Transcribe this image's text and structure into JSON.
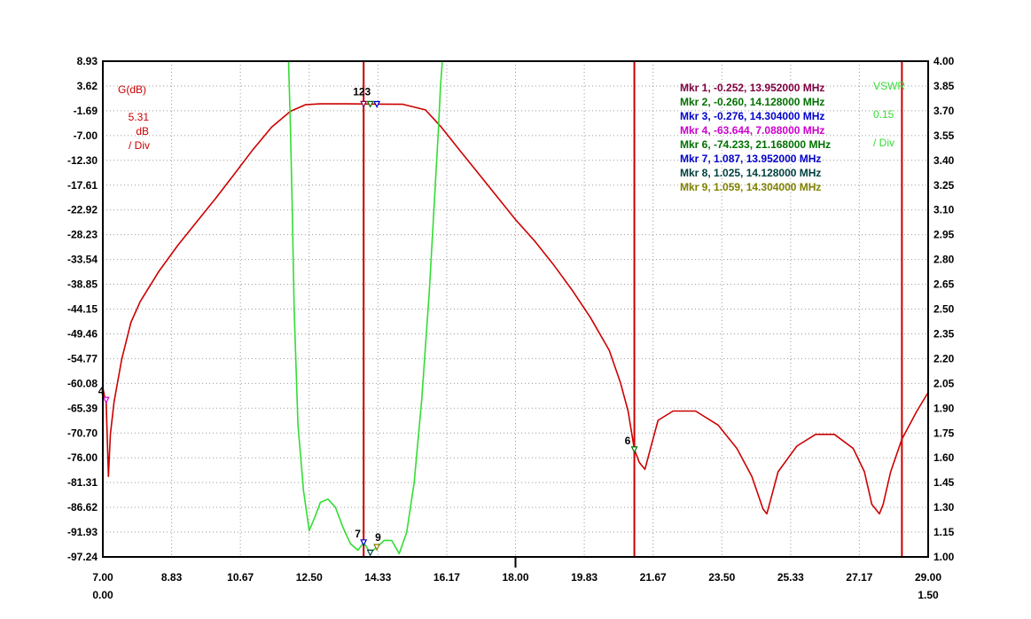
{
  "chart_data": {
    "type": "line",
    "x_range": [
      7.0,
      29.0
    ],
    "x_ticks": [
      "7.00",
      "8.83",
      "10.67",
      "12.50",
      "14.33",
      "16.17",
      "18.00",
      "19.83",
      "21.67",
      "23.50",
      "25.33",
      "27.17",
      "29.00"
    ],
    "x_sub_left": "0.00",
    "x_sub_right": "1.50",
    "y_left": {
      "label": "G(dB)",
      "scale_value": "5.31",
      "scale_unit": "dB",
      "scale_per": "/ Div",
      "range": [
        -97.24,
        8.93
      ],
      "ticks": [
        "8.93",
        "3.62",
        "-1.69",
        "-7.00",
        "-12.30",
        "-17.61",
        "-22.92",
        "-28.23",
        "-33.54",
        "-38.85",
        "-44.15",
        "-49.46",
        "-54.77",
        "-60.08",
        "-65.39",
        "-70.70",
        "-76.00",
        "-81.31",
        "-86.62",
        "-91.93",
        "-97.24"
      ]
    },
    "y_right": {
      "label": "VSWR",
      "scale_value": "0.15",
      "scale_per": "/ Div",
      "range": [
        1.0,
        4.0
      ],
      "ticks": [
        "4.00",
        "3.85",
        "3.70",
        "3.55",
        "3.40",
        "3.25",
        "3.10",
        "2.95",
        "2.80",
        "2.65",
        "2.50",
        "2.35",
        "2.20",
        "2.05",
        "1.90",
        "1.75",
        "1.60",
        "1.45",
        "1.30",
        "1.15",
        "1.00"
      ]
    },
    "grid": true,
    "markers": [
      {
        "text": "Mkr 1, -0.252, 13.952000 MHz",
        "color": "#800040"
      },
      {
        "text": "Mkr 2, -0.260, 14.128000 MHz",
        "color": "#007000"
      },
      {
        "text": "Mkr 3, -0.276, 14.304000 MHz",
        "color": "#0000cc"
      },
      {
        "text": "Mkr 4, -63.644, 7.088000 MHz",
        "color": "#cc00cc"
      },
      {
        "text": "Mkr 6, -74.233, 21.168000 MHz",
        "color": "#007000"
      },
      {
        "text": "Mkr 7, 1.087, 13.952000 MHz",
        "color": "#0000cc"
      },
      {
        "text": "Mkr 8, 1.025, 14.128000 MHz",
        "color": "#004040"
      },
      {
        "text": "Mkr 9, 1.059, 14.304000 MHz",
        "color": "#808000"
      }
    ],
    "marker_tags": [
      {
        "text": "123",
        "x": 13.952,
        "y": -0.252,
        "axis": "gain",
        "dx": -12,
        "dy": -10
      },
      {
        "text": "4",
        "x": 7.088,
        "y": -63.644,
        "axis": "gain",
        "dx": -9,
        "dy": -6
      },
      {
        "text": "6",
        "x": 21.168,
        "y": -74.233,
        "axis": "gain",
        "dx": -11,
        "dy": -6
      },
      {
        "text": "7",
        "x": 13.952,
        "y": 1.087,
        "axis": "vswr",
        "dx": -10,
        "dy": -6
      },
      {
        "text": "9",
        "x": 14.304,
        "y": 1.059,
        "axis": "vswr",
        "dx": -2,
        "dy": -7
      }
    ],
    "marker_points": [
      {
        "x": 13.952,
        "y": -0.252,
        "axis": "gain",
        "color": "#800040"
      },
      {
        "x": 14.128,
        "y": -0.26,
        "axis": "gain",
        "color": "#007000"
      },
      {
        "x": 14.304,
        "y": -0.276,
        "axis": "gain",
        "color": "#0000cc"
      },
      {
        "x": 7.088,
        "y": -63.644,
        "axis": "gain",
        "color": "#cc00cc"
      },
      {
        "x": 21.168,
        "y": -74.233,
        "axis": "gain",
        "color": "#007000"
      },
      {
        "x": 13.952,
        "y": 1.087,
        "axis": "vswr",
        "color": "#0000cc"
      },
      {
        "x": 14.128,
        "y": 1.025,
        "axis": "vswr",
        "color": "#004040"
      },
      {
        "x": 14.304,
        "y": 1.059,
        "axis": "vswr",
        "color": "#808000"
      }
    ],
    "vlines": [
      13.952,
      21.168,
      28.3
    ],
    "series": [
      {
        "axis": "gain",
        "color": "#cc0000",
        "x": [
          7.0,
          7.05,
          7.088,
          7.15,
          7.2,
          7.3,
          7.5,
          7.75,
          8.0,
          8.5,
          9.0,
          9.5,
          10.0,
          10.5,
          11.0,
          11.5,
          12.0,
          12.4,
          12.8,
          13.5,
          14.33,
          15.0,
          15.6,
          16.0,
          16.5,
          17.0,
          17.5,
          18.0,
          18.5,
          19.0,
          19.5,
          20.0,
          20.5,
          20.8,
          21.0,
          21.168,
          21.3,
          21.45,
          21.6,
          21.8,
          22.2,
          22.8,
          23.4,
          23.9,
          24.3,
          24.6,
          24.7,
          24.8,
          25.0,
          25.5,
          26.0,
          26.5,
          27.0,
          27.3,
          27.5,
          27.7,
          27.8,
          28.0,
          28.3,
          28.7,
          29.0
        ],
        "y": [
          -61.0,
          -63.0,
          -63.644,
          -80.0,
          -71.0,
          -64.0,
          -55.0,
          -47.0,
          -42.5,
          -36.0,
          -30.5,
          -25.5,
          -20.5,
          -15.3,
          -10.0,
          -5.2,
          -1.8,
          -0.4,
          -0.2,
          -0.2,
          -0.26,
          -0.3,
          -1.5,
          -5.0,
          -10.0,
          -15.0,
          -20.0,
          -25.0,
          -29.5,
          -34.5,
          -40.0,
          -46.0,
          -53.0,
          -60.0,
          -66.0,
          -74.233,
          -77.0,
          -78.5,
          -74.0,
          -68.0,
          -66.0,
          -66.0,
          -69.0,
          -74.0,
          -80.0,
          -87.0,
          -88.0,
          -85.0,
          -79.0,
          -73.5,
          -71.0,
          -71.0,
          -74.0,
          -79.0,
          -86.0,
          -88.0,
          -86.0,
          -79.0,
          -72.0,
          -66.0,
          -62.0
        ]
      },
      {
        "axis": "vswr",
        "color": "#33dd33",
        "x": [
          11.95,
          12.0,
          12.05,
          12.1,
          12.2,
          12.35,
          12.5,
          12.65,
          12.8,
          13.0,
          13.2,
          13.4,
          13.6,
          13.8,
          13.952,
          14.128,
          14.304,
          14.5,
          14.7,
          14.9,
          15.1,
          15.3,
          15.5,
          15.7,
          15.85,
          15.95,
          16.0,
          16.05
        ],
        "y": [
          4.0,
          3.6,
          3.1,
          2.5,
          1.8,
          1.4,
          1.16,
          1.24,
          1.33,
          1.35,
          1.3,
          1.18,
          1.08,
          1.04,
          1.087,
          1.025,
          1.059,
          1.1,
          1.1,
          1.02,
          1.15,
          1.45,
          1.95,
          2.6,
          3.2,
          3.6,
          3.85,
          4.0
        ]
      }
    ]
  }
}
